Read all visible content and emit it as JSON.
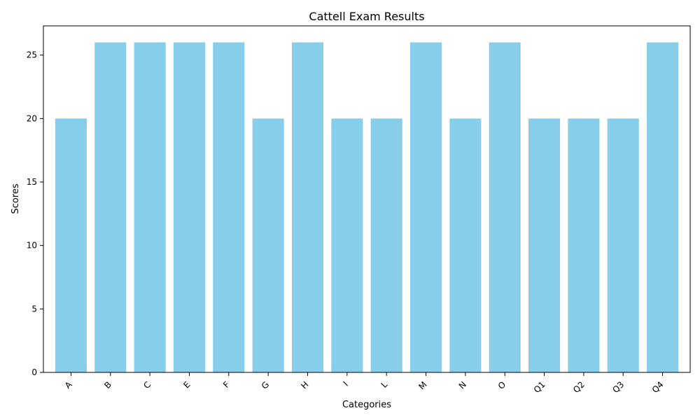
{
  "chart_data": {
    "type": "bar",
    "title": "Cattell Exam Results",
    "xlabel": "Categories",
    "ylabel": "Scores",
    "categories": [
      "A",
      "B",
      "C",
      "E",
      "F",
      "G",
      "H",
      "I",
      "L",
      "M",
      "N",
      "O",
      "Q1",
      "Q2",
      "Q3",
      "Q4"
    ],
    "values": [
      20,
      26,
      26,
      26,
      26,
      20,
      26,
      20,
      20,
      26,
      20,
      26,
      20,
      20,
      20,
      26
    ],
    "yticks": [
      0,
      5,
      10,
      15,
      20,
      25
    ],
    "ylim": [
      0,
      27.3
    ],
    "grid": false,
    "legend": "none",
    "colors": {
      "bar": "#87CEEB",
      "axis": "#000000",
      "text": "#000000",
      "background": "#ffffff"
    }
  }
}
